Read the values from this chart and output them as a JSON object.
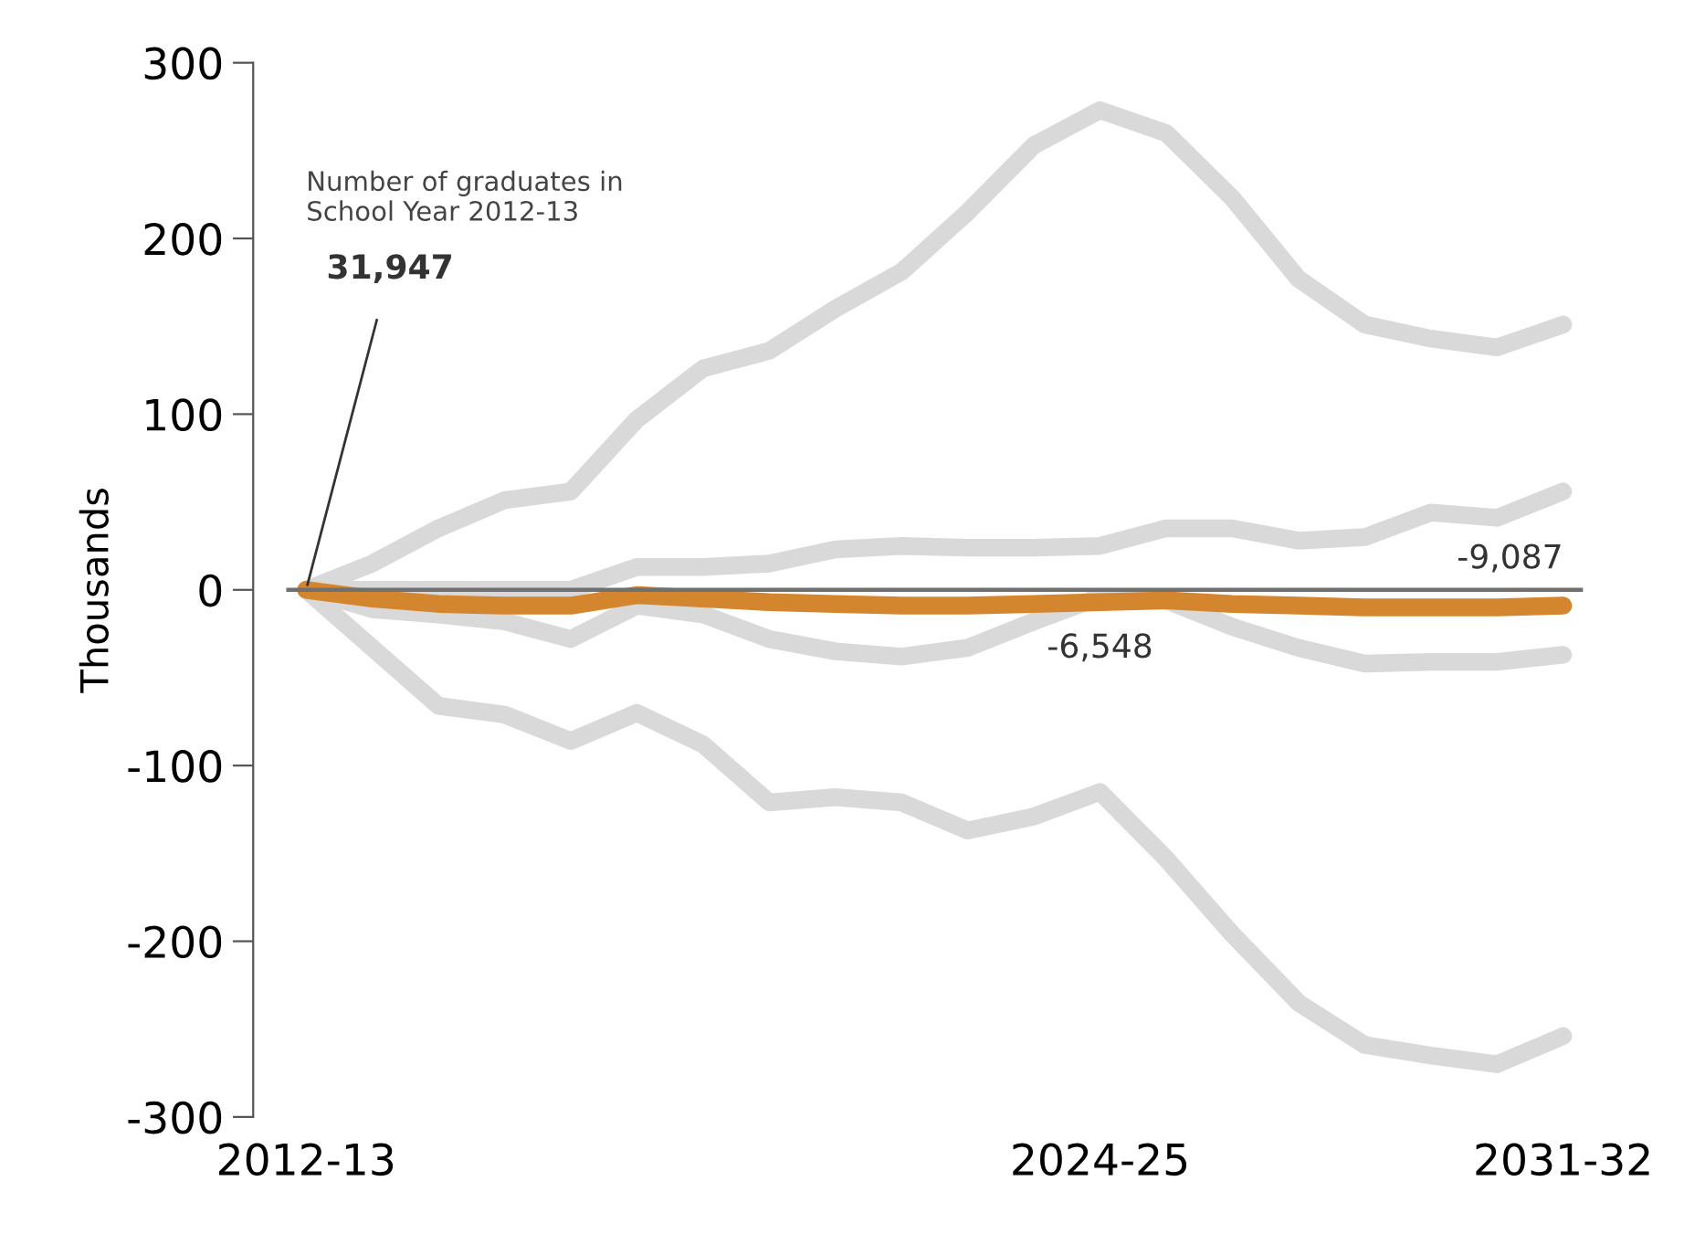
{
  "chart_data": {
    "type": "line",
    "ylabel": "Thousands",
    "categories": [
      "2012-13",
      null,
      null,
      null,
      null,
      null,
      null,
      null,
      null,
      null,
      null,
      null,
      "2024-25",
      null,
      null,
      null,
      null,
      null,
      null,
      "2031-32"
    ],
    "series": [
      {
        "color": "#d9d9d9",
        "values": [
          0,
          15,
          35,
          51,
          56,
          97,
          126,
          136,
          160,
          181,
          215,
          253,
          273,
          260,
          223,
          177,
          151,
          143,
          138,
          151
        ]
      },
      {
        "color": "#d9d9d9",
        "values": [
          0,
          0,
          0,
          0,
          0,
          13,
          13,
          15,
          23,
          25,
          24,
          24,
          25,
          35,
          35,
          28,
          30,
          44,
          41,
          56
        ]
      },
      {
        "color": "#d9d9d9",
        "values": [
          0,
          -11,
          -14,
          -18,
          -28,
          -9,
          -14,
          -28,
          -35,
          -38,
          -33,
          -18,
          -4,
          -6,
          -21,
          -33,
          -42,
          -41,
          -41,
          -37
        ]
      },
      {
        "color": "#d9d9d9",
        "values": [
          0,
          -33,
          -66,
          -71,
          -86,
          -70,
          -88,
          -121,
          -118,
          -121,
          -137,
          -129,
          -115,
          -153,
          -196,
          -235,
          -259,
          -265,
          -270,
          -254
        ]
      },
      {
        "color": "#d4862f",
        "values": [
          0,
          -5,
          -8,
          -9,
          -9,
          -3,
          -5,
          -7,
          -8,
          -9,
          -9,
          -8,
          -7,
          -6,
          -8,
          -9,
          -10,
          -10,
          -10,
          -9
        ]
      }
    ],
    "ylim": [
      -300,
      300
    ],
    "yticks": [
      -300,
      -200,
      -100,
      0,
      100,
      200,
      300
    ],
    "ref_lines": [
      {
        "axis": "y",
        "value": 0,
        "color": "#707070"
      }
    ],
    "annotations": [
      "Number of graduates in\nSchool Year 2012-13",
      {
        "text": "31,947",
        "x": "2012-13",
        "y": 0
      },
      {
        "text": "-6,548",
        "x": "2024-25",
        "y": -7
      },
      {
        "text": "-9,087",
        "x": "2031-32",
        "y": -9
      }
    ],
    "grid": false,
    "legend": false,
    "marker": "none",
    "line_style": "solid"
  }
}
